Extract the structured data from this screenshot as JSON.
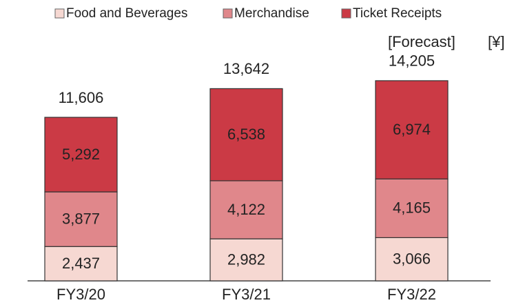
{
  "chart_data": {
    "type": "stacked_bar",
    "categories": [
      "FY3/20",
      "FY3/21",
      "FY3/22"
    ],
    "series": [
      {
        "name": "Food and Beverages",
        "color": "#f6d8d2",
        "values": [
          2437,
          2982,
          3066
        ],
        "value_labels": [
          "2,437",
          "2,982",
          "3,066"
        ]
      },
      {
        "name": "Merchandise",
        "color": "#e0878b",
        "values": [
          3877,
          4122,
          4165
        ],
        "value_labels": [
          "3,877",
          "4,122",
          "4,165"
        ]
      },
      {
        "name": "Ticket Receipts",
        "color": "#cb3a45",
        "values": [
          5292,
          6538,
          6974
        ],
        "value_labels": [
          "5,292",
          "6,538",
          "6,974"
        ]
      }
    ],
    "totals": [
      11606,
      13642,
      14205
    ],
    "total_labels": [
      "11,606",
      "13,642",
      "14,205"
    ],
    "annotations": [
      "[Forecast]",
      "[¥]"
    ]
  }
}
